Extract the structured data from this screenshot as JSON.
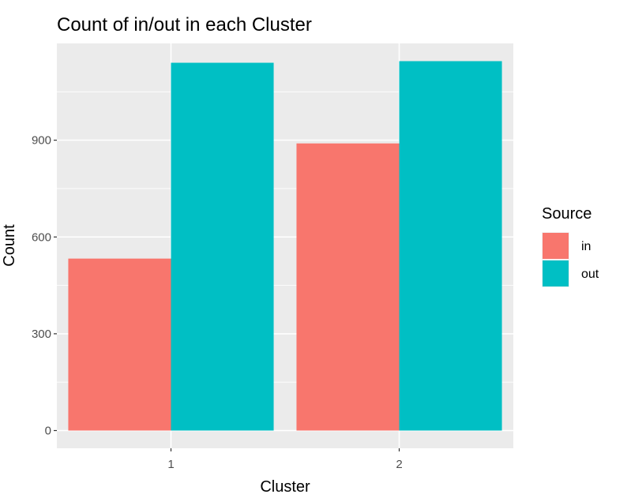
{
  "chart_data": {
    "type": "bar",
    "title": "Count of in/out in each Cluster",
    "xlabel": "Cluster",
    "ylabel": "Count",
    "categories": [
      "1",
      "2"
    ],
    "series": [
      {
        "name": "in",
        "values": [
          533,
          890
        ],
        "color": "#F8766D"
      },
      {
        "name": "out",
        "values": [
          1140,
          1145
        ],
        "color": "#00BFC4"
      }
    ],
    "ylim": [
      -55,
      1200
    ],
    "yticks": [
      0,
      300,
      600,
      900
    ],
    "ytick_labels": [
      "0",
      "300",
      "600",
      "900"
    ],
    "grid": true,
    "background_color": "#EBEBEB",
    "legend": {
      "title": "Source",
      "position": "right",
      "items": [
        "in",
        "out"
      ]
    }
  }
}
